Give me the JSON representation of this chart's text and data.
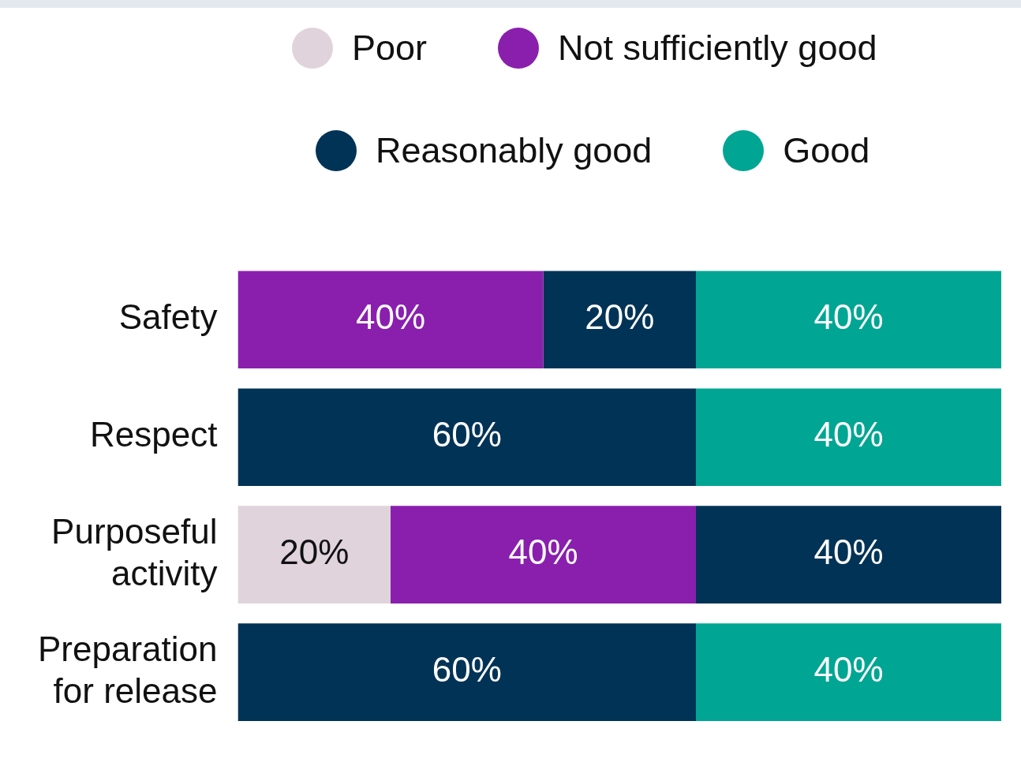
{
  "chart_data": {
    "type": "bar",
    "orientation": "horizontal",
    "stacked": true,
    "legend": "top",
    "categories": [
      "Safety",
      "Respect",
      "Purposeful activity",
      "Preparation for release"
    ],
    "series": [
      {
        "name": "Poor",
        "color": "#e0d3dc",
        "values": [
          null,
          null,
          20,
          null
        ],
        "value_labels": [
          null,
          null,
          "20%",
          null
        ]
      },
      {
        "name": "Not sufficiently good",
        "color": "#8a1fae",
        "values": [
          40,
          null,
          40,
          null
        ],
        "value_labels": [
          "40%",
          null,
          "40%",
          null
        ]
      },
      {
        "name": "Reasonably good",
        "color": "#003356",
        "values": [
          20,
          60,
          40,
          60
        ],
        "value_labels": [
          "20%",
          "60%",
          "40%",
          "60%"
        ]
      },
      {
        "name": "Good",
        "color": "#00a693",
        "values": [
          40,
          40,
          null,
          40
        ],
        "value_labels": [
          "40%",
          "40%",
          null,
          "40%"
        ]
      }
    ]
  }
}
